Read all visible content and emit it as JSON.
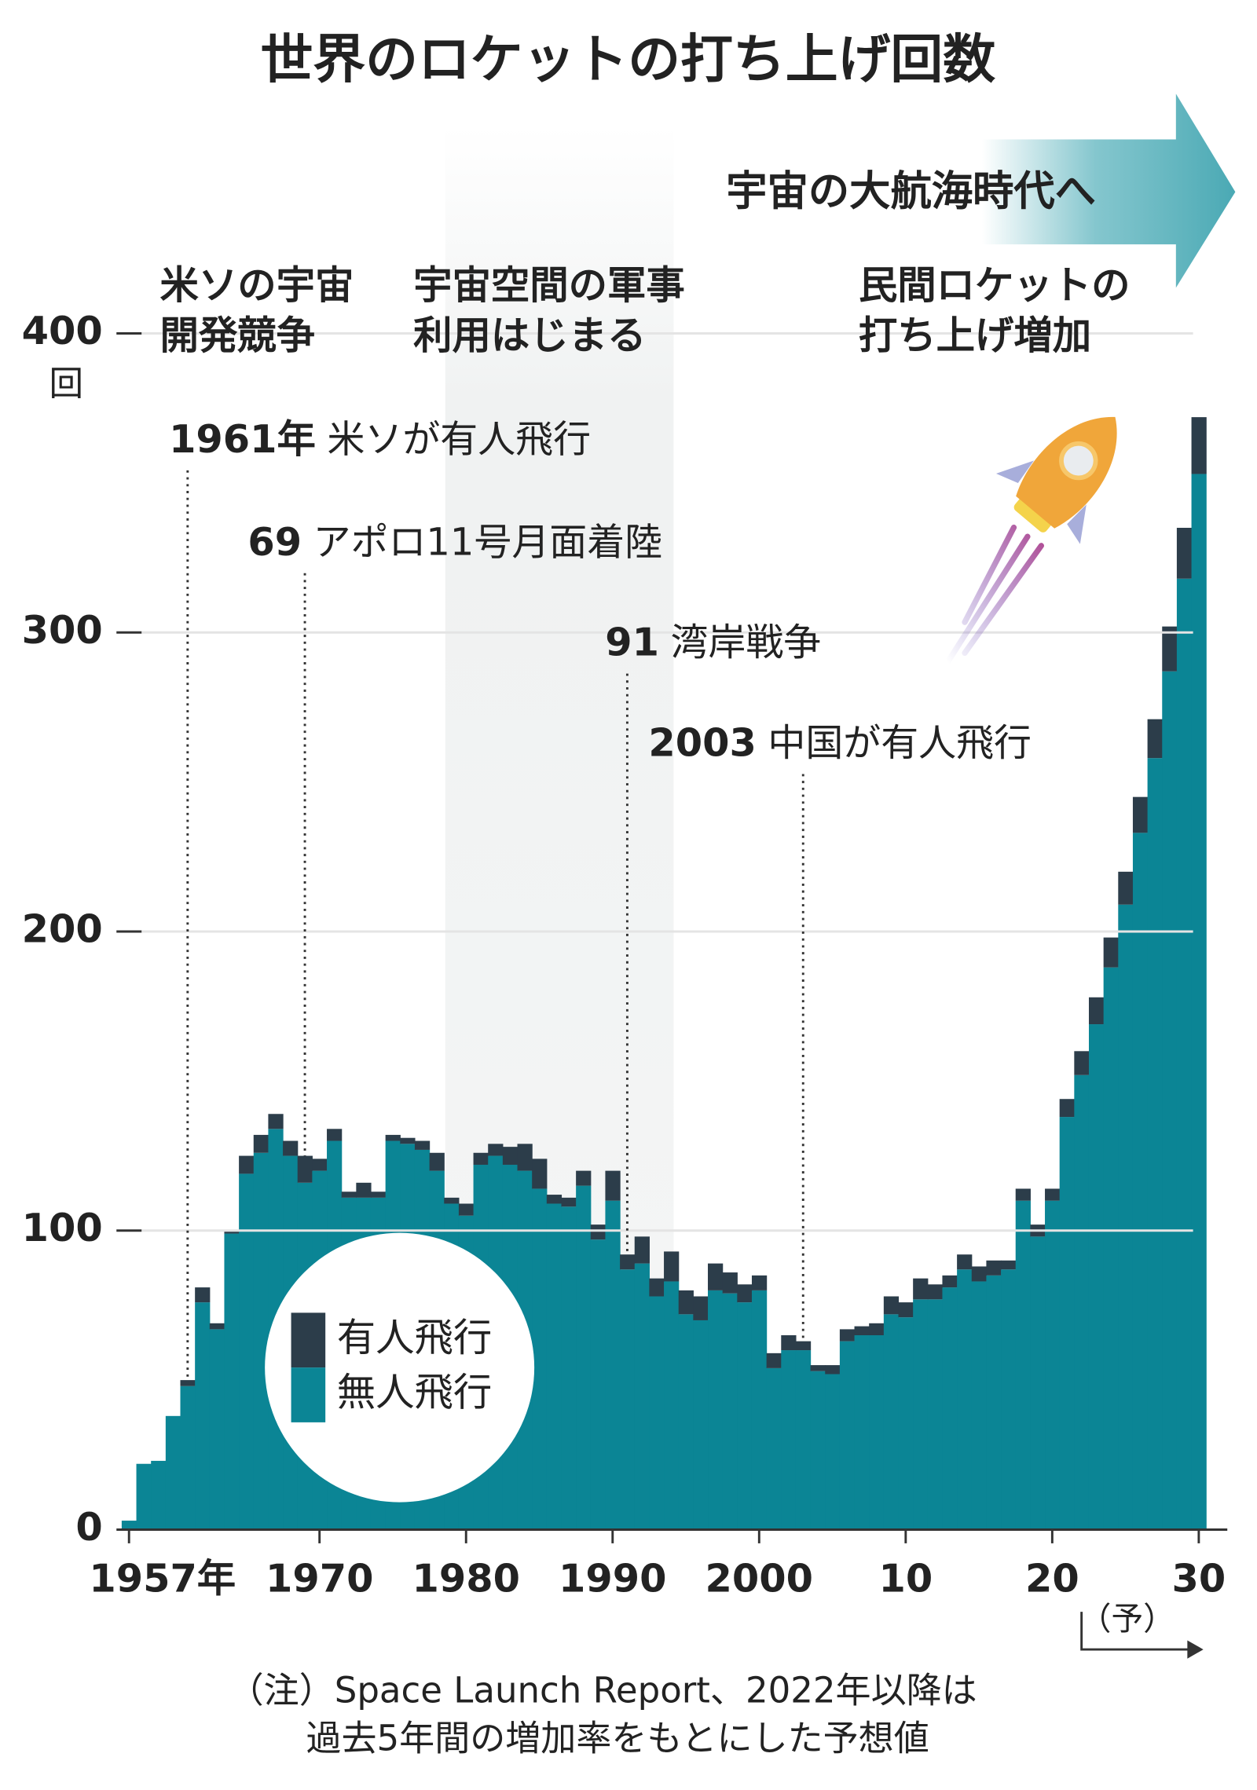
{
  "chart_data": {
    "type": "bar",
    "stacked": true,
    "title": "世界のロケットの打ち上げ回数",
    "banner": "宇宙の大航海時代へ",
    "eras": [
      {
        "lines": [
          "米ソの宇宙",
          "開発競争"
        ]
      },
      {
        "lines": [
          "宇宙空間の軍事",
          "利用はじまる"
        ]
      },
      {
        "lines": [
          "民間ロケットの",
          "打ち上げ増加"
        ]
      }
    ],
    "events": [
      {
        "x": 1961,
        "label": "1961年",
        "text": "米ソが有人飛行"
      },
      {
        "x": 1969,
        "label": "69",
        "text": "アポロ11号月面着陸"
      },
      {
        "x": 1991,
        "label": "91",
        "text": "湾岸戦争"
      },
      {
        "x": 2003,
        "label": "2003",
        "text": "中国が有人飛行"
      }
    ],
    "x": [
      1957,
      1958,
      1959,
      1960,
      1961,
      1962,
      1963,
      1964,
      1965,
      1966,
      1967,
      1968,
      1969,
      1970,
      1971,
      1972,
      1973,
      1974,
      1975,
      1976,
      1977,
      1978,
      1979,
      1980,
      1981,
      1982,
      1983,
      1984,
      1985,
      1986,
      1987,
      1988,
      1989,
      1990,
      1991,
      1992,
      1993,
      1994,
      1995,
      1996,
      1997,
      1998,
      1999,
      2000,
      2001,
      2002,
      2003,
      2004,
      2005,
      2006,
      2007,
      2008,
      2009,
      2010,
      2011,
      2012,
      2013,
      2014,
      2015,
      2016,
      2017,
      2018,
      2019,
      2020,
      2021,
      2022,
      2023,
      2024,
      2025,
      2026,
      2027,
      2028,
      2029,
      2030
    ],
    "series": [
      {
        "name": "無人飛行",
        "color": "#0b8595",
        "values": [
          3,
          22,
          23,
          38,
          48,
          76,
          67,
          99,
          119,
          126,
          134,
          125,
          116,
          120,
          130,
          111,
          111,
          111,
          130,
          129,
          127,
          120,
          109,
          105,
          122,
          125,
          122,
          120,
          114,
          109,
          108,
          115,
          97,
          110,
          87,
          89,
          78,
          83,
          72,
          70,
          80,
          79,
          76,
          80,
          54,
          60,
          60,
          53,
          52,
          63,
          65,
          65,
          72,
          71,
          77,
          77,
          81,
          87,
          83,
          85,
          87,
          110,
          98,
          110,
          138,
          152,
          169,
          188,
          209,
          233,
          258,
          287,
          318,
          353
        ]
      },
      {
        "name": "有人飛行",
        "color": "#2c3d4a",
        "values": [
          0,
          0,
          0,
          0,
          2,
          5,
          2,
          1,
          6,
          6,
          5,
          5,
          9,
          4,
          4,
          2,
          5,
          2,
          2,
          2,
          3,
          6,
          2,
          4,
          4,
          4,
          6,
          9,
          10,
          3,
          3,
          5,
          5,
          10,
          5,
          9,
          6,
          10,
          8,
          8,
          9,
          7,
          6,
          5,
          5,
          5,
          3,
          2,
          3,
          4,
          3,
          4,
          6,
          5,
          7,
          5,
          4,
          5,
          5,
          5,
          3,
          4,
          4,
          4,
          6,
          8,
          9,
          10,
          11,
          12,
          13,
          15,
          17,
          19
        ]
      }
    ],
    "xlim": [
      1957,
      2030
    ],
    "xticks": [
      {
        "value": 1957,
        "label": "1957年"
      },
      1970,
      1980,
      1990,
      2000,
      {
        "value": 2010,
        "label": "10"
      },
      {
        "value": 2020,
        "label": "20"
      },
      {
        "value": 2030,
        "label": "30"
      }
    ],
    "ylim": [
      0,
      400
    ],
    "yticks": [
      0,
      100,
      200,
      300,
      400
    ],
    "y_unit": "回",
    "grid": true,
    "forecast": {
      "from": 2022,
      "label": "（予）"
    },
    "note": [
      "（注）Space Launch Report、2022年以降は",
      "過去5年間の増加率をもとにした予想値"
    ]
  }
}
